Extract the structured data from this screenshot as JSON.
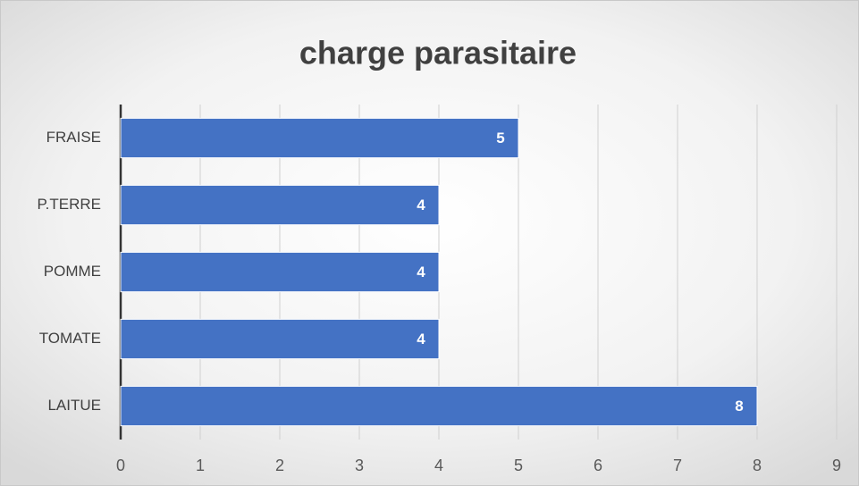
{
  "chart_data": {
    "type": "bar",
    "orientation": "horizontal",
    "title": "charge parasitaire",
    "categories": [
      "FRAISE",
      "P.TERRE",
      "POMME",
      "TOMATE",
      "LAITUE"
    ],
    "values": [
      5,
      4,
      4,
      4,
      8
    ],
    "color": "#4472c4",
    "xlim": [
      0,
      9
    ],
    "xticks": [
      0,
      1,
      2,
      3,
      4,
      5,
      6,
      7,
      8,
      9
    ],
    "grid": true,
    "data_labels": true
  }
}
